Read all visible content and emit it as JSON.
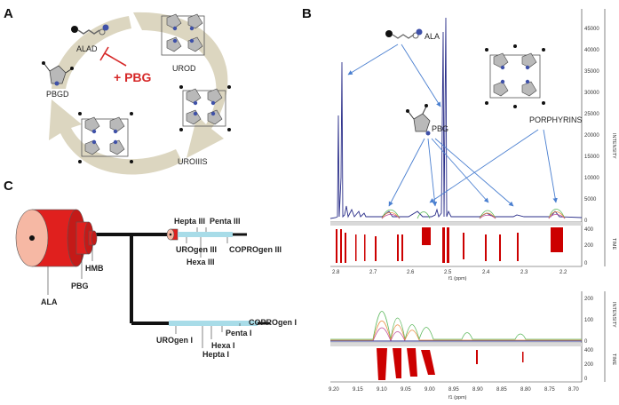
{
  "panels": {
    "a": "A",
    "b": "B",
    "c": "C"
  },
  "panel_a": {
    "enzymes": {
      "alad": "ALAD",
      "pbgd": "PBGD",
      "urod": "UROD",
      "uroiiis": "UROIIIS"
    },
    "inhibitor": "+ PBG",
    "colors": {
      "arrow": "#d8d2bc",
      "inhibitor": "#d62828",
      "ring": "#b9b9b9",
      "nitrogen": "#3f51a8"
    }
  },
  "panel_b": {
    "annotations": {
      "ala": "ALA",
      "pbg": "PBG",
      "porphyrins": "PORPHYRINS"
    },
    "top_spectrum": {
      "xlabel": "f1 (ppm)",
      "x_ticks": [
        "2.8",
        "2.7",
        "2.6",
        "2.5",
        "2.4",
        "2.3",
        "2.2"
      ],
      "intensity_label": "INTENSITY",
      "time_label": "TIME",
      "y_ticks": [
        "45000",
        "40000",
        "35000",
        "30000",
        "25000",
        "20000",
        "15000",
        "10000",
        "5000",
        "0"
      ],
      "time_ticks": [
        "400",
        "200",
        "0"
      ]
    },
    "bottom_spectrum": {
      "xlabel": "f1 (ppm)",
      "x_ticks": [
        "9.20",
        "9.15",
        "9.10",
        "9.05",
        "9.00",
        "8.95",
        "8.90",
        "8.85",
        "8.80",
        "8.75",
        "8.70"
      ],
      "intensity_label": "INTENSITY",
      "time_label": "TIME",
      "y_ticks": [
        "200",
        "100",
        "0"
      ],
      "time_ticks": [
        "400",
        "200",
        "0"
      ]
    },
    "colors": {
      "spectrum_main": "#2b2f8a",
      "time_marks": "#cc0000",
      "arrows": "#4a7fd0"
    }
  },
  "panel_c": {
    "labels": {
      "ala": "ALA",
      "pbg": "PBG",
      "hmb": "HMB",
      "hepta_iii": "Hepta III",
      "penta_iii": "Penta III",
      "urogen_iii": "UROgen III",
      "hexa_iii": "Hexa III",
      "coprogen_iii": "COPROgen III",
      "urogen_i": "UROgen I",
      "hepta_i": "Hepta I",
      "hexa_i": "Hexa I",
      "penta_i": "Penta I",
      "coprogen_i": "COPROgen I"
    },
    "colors": {
      "cylinder": "#e0201e",
      "cylinder_face": "#f6b8a4",
      "bar": "#a8dce8",
      "pipe": "#111111"
    }
  }
}
